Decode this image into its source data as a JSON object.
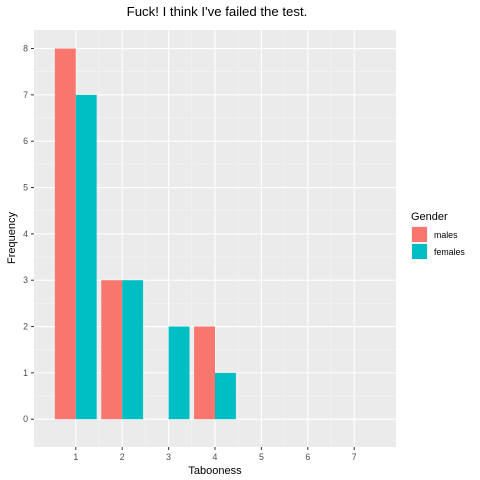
{
  "chart_data": {
    "type": "bar",
    "title": "Fuck! I think I've failed the test.",
    "xlabel": "Tabooness",
    "ylabel": "Frequency",
    "x_ticks": [
      1,
      2,
      3,
      4,
      5,
      6,
      7
    ],
    "y_ticks": [
      0,
      1,
      2,
      3,
      4,
      5,
      6,
      7,
      8
    ],
    "xlim": [
      0.1,
      7.9
    ],
    "ylim": [
      -0.6,
      8.4
    ],
    "grid": true,
    "legend": {
      "title": "Gender",
      "placement": "right"
    },
    "series": [
      {
        "name": "males",
        "color": "#F8766D",
        "points": [
          {
            "x": 1,
            "y": 8
          },
          {
            "x": 2,
            "y": 3
          },
          {
            "x": 4,
            "y": 2
          }
        ]
      },
      {
        "name": "females",
        "color": "#00BFC4",
        "points": [
          {
            "x": 1,
            "y": 7
          },
          {
            "x": 2,
            "y": 3
          },
          {
            "x": 3,
            "y": 2
          },
          {
            "x": 4,
            "y": 1
          }
        ]
      }
    ]
  }
}
